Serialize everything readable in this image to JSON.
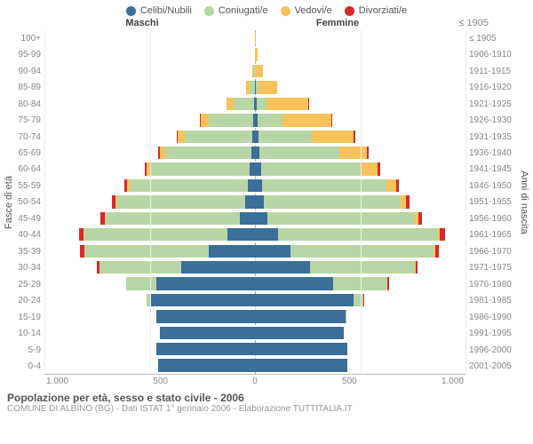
{
  "legend": [
    {
      "label": "Celibi/Nubili",
      "color": "#3b6e99"
    },
    {
      "label": "Coniugati/e",
      "color": "#b8d6a5"
    },
    {
      "label": "Vedovi/e",
      "color": "#f7c35a"
    },
    {
      "label": "Divorziati/e",
      "color": "#d62a2a"
    }
  ],
  "headers": {
    "male": "Maschi",
    "female": "Femmine",
    "right_tl": "≤ 1905"
  },
  "axis_labels": {
    "left": "Fasce di età",
    "right": "Anni di nascita"
  },
  "max_value": 1000,
  "x_ticks": [
    "1.000",
    "500",
    "0",
    "500",
    "1.000"
  ],
  "rows": [
    {
      "age": "100+",
      "birth": "≤ 1905",
      "m": [
        0,
        0,
        0,
        0
      ],
      "f": [
        0,
        0,
        5,
        0
      ]
    },
    {
      "age": "95-99",
      "birth": "1906-1910",
      "m": [
        0,
        0,
        2,
        0
      ],
      "f": [
        0,
        0,
        12,
        0
      ]
    },
    {
      "age": "90-94",
      "birth": "1911-1915",
      "m": [
        0,
        5,
        8,
        0
      ],
      "f": [
        0,
        5,
        35,
        0
      ]
    },
    {
      "age": "85-89",
      "birth": "1916-1920",
      "m": [
        2,
        25,
        15,
        0
      ],
      "f": [
        3,
        12,
        90,
        0
      ]
    },
    {
      "age": "80-84",
      "birth": "1921-1925",
      "m": [
        5,
        95,
        35,
        0
      ],
      "f": [
        8,
        45,
        200,
        3
      ]
    },
    {
      "age": "75-79",
      "birth": "1926-1930",
      "m": [
        8,
        210,
        40,
        2
      ],
      "f": [
        12,
        120,
        230,
        5
      ]
    },
    {
      "age": "70-74",
      "birth": "1931-1935",
      "m": [
        12,
        320,
        35,
        5
      ],
      "f": [
        18,
        250,
        200,
        8
      ]
    },
    {
      "age": "65-69",
      "birth": "1936-1940",
      "m": [
        18,
        410,
        25,
        8
      ],
      "f": [
        22,
        380,
        130,
        10
      ]
    },
    {
      "age": "60-64",
      "birth": "1941-1945",
      "m": [
        25,
        470,
        18,
        10
      ],
      "f": [
        28,
        480,
        75,
        12
      ]
    },
    {
      "age": "55-59",
      "birth": "1946-1950",
      "m": [
        35,
        560,
        12,
        15
      ],
      "f": [
        35,
        590,
        45,
        15
      ]
    },
    {
      "age": "50-54",
      "birth": "1951-1955",
      "m": [
        45,
        610,
        8,
        18
      ],
      "f": [
        42,
        650,
        25,
        18
      ]
    },
    {
      "age": "45-49",
      "birth": "1956-1960",
      "m": [
        70,
        640,
        5,
        20
      ],
      "f": [
        60,
        700,
        15,
        20
      ]
    },
    {
      "age": "40-44",
      "birth": "1961-1965",
      "m": [
        130,
        680,
        3,
        22
      ],
      "f": [
        110,
        760,
        8,
        25
      ]
    },
    {
      "age": "35-39",
      "birth": "1966-1970",
      "m": [
        220,
        590,
        2,
        18
      ],
      "f": [
        170,
        680,
        5,
        20
      ]
    },
    {
      "age": "30-34",
      "birth": "1971-1975",
      "m": [
        350,
        390,
        0,
        10
      ],
      "f": [
        260,
        500,
        2,
        12
      ]
    },
    {
      "age": "25-29",
      "birth": "1976-1980",
      "m": [
        470,
        140,
        0,
        4
      ],
      "f": [
        370,
        260,
        0,
        6
      ]
    },
    {
      "age": "20-24",
      "birth": "1981-1985",
      "m": [
        500,
        15,
        0,
        0
      ],
      "f": [
        470,
        45,
        0,
        2
      ]
    },
    {
      "age": "15-19",
      "birth": "1986-1990",
      "m": [
        470,
        0,
        0,
        0
      ],
      "f": [
        430,
        2,
        0,
        0
      ]
    },
    {
      "age": "10-14",
      "birth": "1991-1995",
      "m": [
        450,
        0,
        0,
        0
      ],
      "f": [
        420,
        0,
        0,
        0
      ]
    },
    {
      "age": "5-9",
      "birth": "1996-2000",
      "m": [
        470,
        0,
        0,
        0
      ],
      "f": [
        440,
        0,
        0,
        0
      ]
    },
    {
      "age": "0-4",
      "birth": "2001-2005",
      "m": [
        460,
        0,
        0,
        0
      ],
      "f": [
        440,
        0,
        0,
        0
      ]
    }
  ],
  "footer": {
    "title": "Popolazione per età, sesso e stato civile - 2006",
    "sub": "COMUNE DI ALBINO (BG) - Dati ISTAT 1° gennaio 2006 - Elaborazione TUTTITALIA.IT"
  },
  "plot": {
    "background": "#ffffff",
    "grid_color": "#eeeeee",
    "center_line_color": "#aaaaaa",
    "label_color": "#888888"
  }
}
